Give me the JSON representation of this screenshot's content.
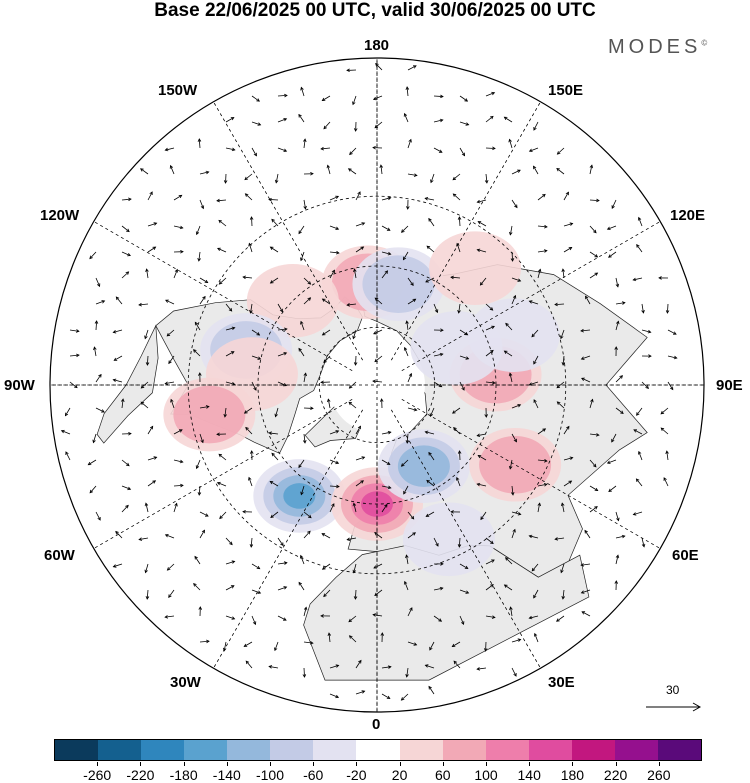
{
  "title": "Base 22/06/2025 00 UTC, valid 30/06/2025 00 UTC",
  "brand": "MODES",
  "brand_mark": "©",
  "longitude_labels": {
    "top": "180",
    "bottom": "0",
    "left": "90W",
    "right": "90E",
    "upper_left_1": "150W",
    "upper_left_2": "120W",
    "upper_right_1": "150E",
    "upper_right_2": "120E",
    "lower_left_1": "60W",
    "lower_left_2": "30W",
    "lower_right_1": "60E",
    "lower_right_2": "30E"
  },
  "reference_vector": {
    "value": "30"
  },
  "colorbar": {
    "ticks": [
      "-260",
      "-220",
      "-180",
      "-140",
      "-100",
      "-60",
      "-20",
      "20",
      "60",
      "100",
      "140",
      "180",
      "220",
      "260"
    ],
    "colors": [
      "#0b3a5c",
      "#14608f",
      "#2f86bd",
      "#5aa2cf",
      "#94b8dc",
      "#c3cbe6",
      "#e3e2f1",
      "#ffffff",
      "#f6d6d6",
      "#f2a9b6",
      "#ee7eab",
      "#e04c9f",
      "#c2177f",
      "#95108e",
      "#5a0a7a"
    ]
  },
  "anomalies": [
    {
      "lon": -175,
      "lat": 55,
      "sign": "positive",
      "level": 2
    },
    {
      "lon": 168,
      "lat": 55,
      "sign": "negative",
      "level": 2
    },
    {
      "lon": 140,
      "lat": 40,
      "sign": "positive",
      "level": 1
    },
    {
      "lon": -135,
      "lat": 50,
      "sign": "positive",
      "level": 1
    },
    {
      "lon": -105,
      "lat": 45,
      "sign": "negative",
      "level": 2
    },
    {
      "lon": -95,
      "lat": 48,
      "sign": "positive",
      "level": 1
    },
    {
      "lon": -80,
      "lat": 35,
      "sign": "positive",
      "level": 2
    },
    {
      "lon": -35,
      "lat": 45,
      "sign": "negative",
      "level": 4
    },
    {
      "lon": 0,
      "lat": 50,
      "sign": "positive",
      "level": 4
    },
    {
      "lon": 30,
      "lat": 58,
      "sign": "negative",
      "level": 3
    },
    {
      "lon": 60,
      "lat": 38,
      "sign": "positive",
      "level": 2
    },
    {
      "lon": 95,
      "lat": 50,
      "sign": "positive",
      "level": 2
    },
    {
      "lon": 115,
      "lat": 60,
      "sign": "negative",
      "level": 1
    },
    {
      "lon": 110,
      "lat": 42,
      "sign": "negative",
      "level": 1
    },
    {
      "lon": 25,
      "lat": 35,
      "sign": "negative",
      "level": 1
    }
  ]
}
